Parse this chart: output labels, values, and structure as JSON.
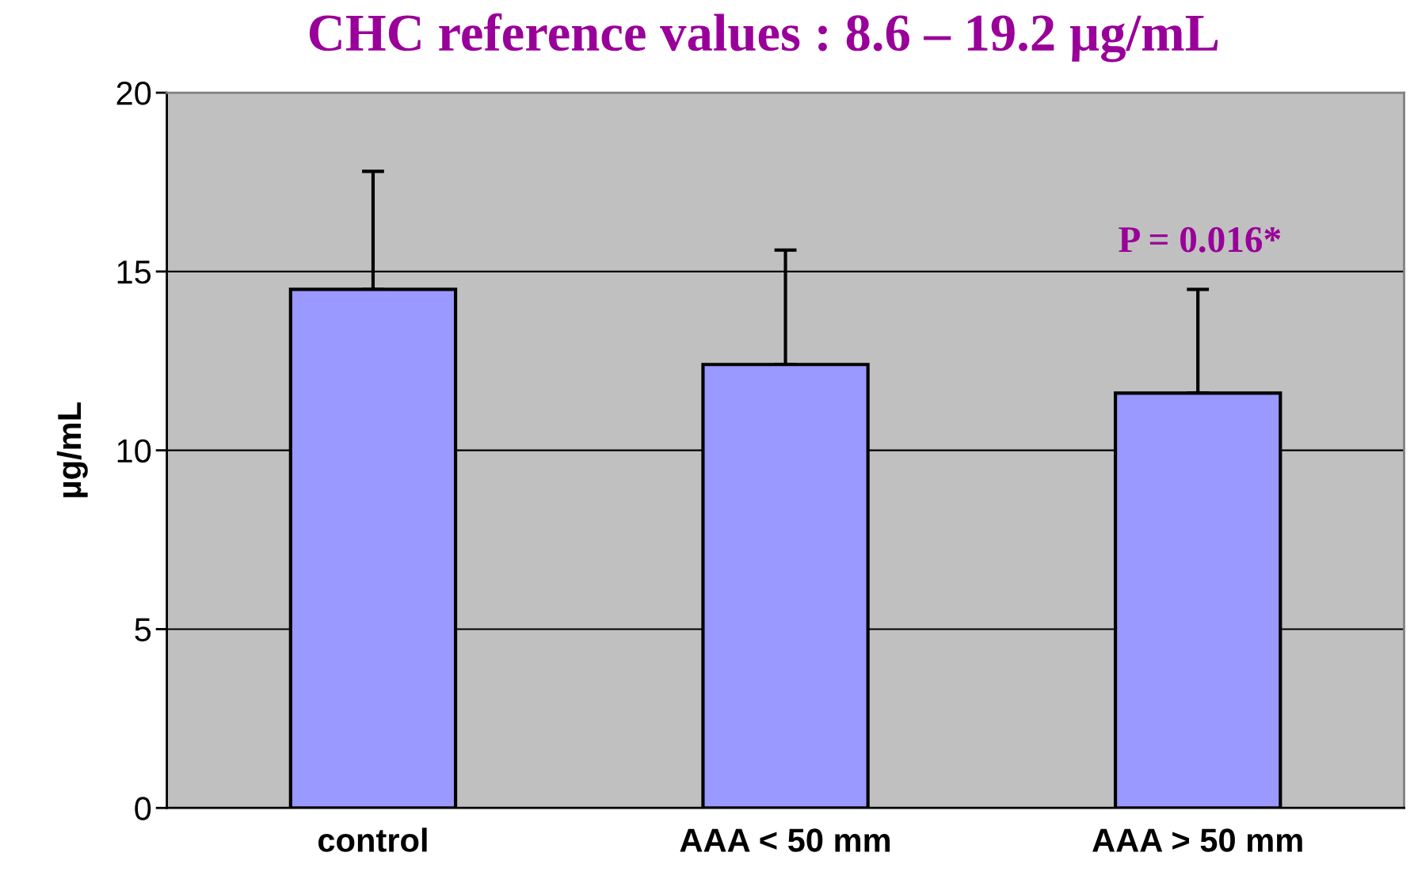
{
  "chart_data": {
    "type": "bar",
    "title": "CHC reference values : 8.6 – 19.2 µg/mL",
    "ylabel": "µg/mL",
    "categories": [
      "control",
      "AAA < 50 mm",
      "AAA > 50 mm"
    ],
    "values": [
      14.5,
      12.4,
      11.6
    ],
    "color": "#9999ff",
    "errors": [
      [
        14.5,
        17.8
      ],
      [
        12.4,
        15.6
      ],
      [
        11.6,
        14.5
      ]
    ],
    "annotations": [
      "P = 0.016*"
    ],
    "ylim": [
      0,
      20
    ],
    "yticks": [
      0,
      5,
      10,
      15,
      20
    ],
    "grid": "y"
  }
}
